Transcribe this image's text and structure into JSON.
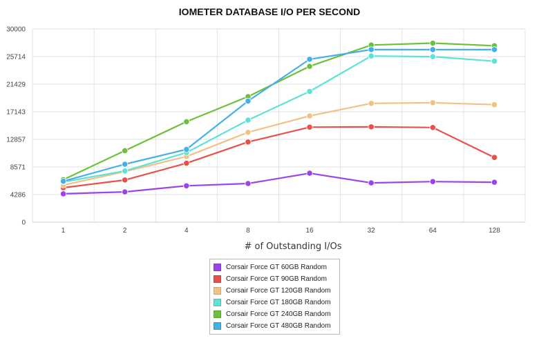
{
  "chart_data": {
    "type": "line",
    "title": "IOMETER DATABASE I/O PER SECOND",
    "xlabel": "# of Outstanding I/Os",
    "ylabel": "",
    "categories": [
      "1",
      "2",
      "4",
      "8",
      "16",
      "32",
      "64",
      "128"
    ],
    "ylim": [
      0,
      30000
    ],
    "yticks": [
      "0",
      "4286",
      "8571",
      "12857",
      "17143",
      "21429",
      "25714",
      "30000"
    ],
    "grid": true,
    "legend_position": "bottom",
    "series": [
      {
        "name": "Corsair Force GT 60GB Random",
        "color": "#9b45e8",
        "values": [
          4400,
          4700,
          5650,
          6000,
          7600,
          6100,
          6300,
          6200
        ]
      },
      {
        "name": "Corsair Force GT 90GB Random",
        "color": "#e8504a",
        "values": [
          5350,
          6550,
          9150,
          12450,
          14750,
          14800,
          14700,
          10050
        ]
      },
      {
        "name": "Corsair Force GT 120GB Random",
        "color": "#f0c285",
        "values": [
          5750,
          7850,
          10200,
          13950,
          16500,
          18450,
          18550,
          18250
        ]
      },
      {
        "name": "Corsair Force GT 180GB Random",
        "color": "#5ce3d6",
        "values": [
          6250,
          7950,
          10800,
          15850,
          20300,
          25800,
          25700,
          25000
        ]
      },
      {
        "name": "Corsair Force GT 240GB Random",
        "color": "#6cc13a",
        "values": [
          6600,
          11100,
          15600,
          19500,
          24200,
          27500,
          27800,
          27400
        ]
      },
      {
        "name": "Corsair Force GT 480GB Random",
        "color": "#45b0e8",
        "values": [
          6350,
          9000,
          11300,
          18800,
          25300,
          26800,
          26800,
          26800
        ]
      }
    ]
  }
}
